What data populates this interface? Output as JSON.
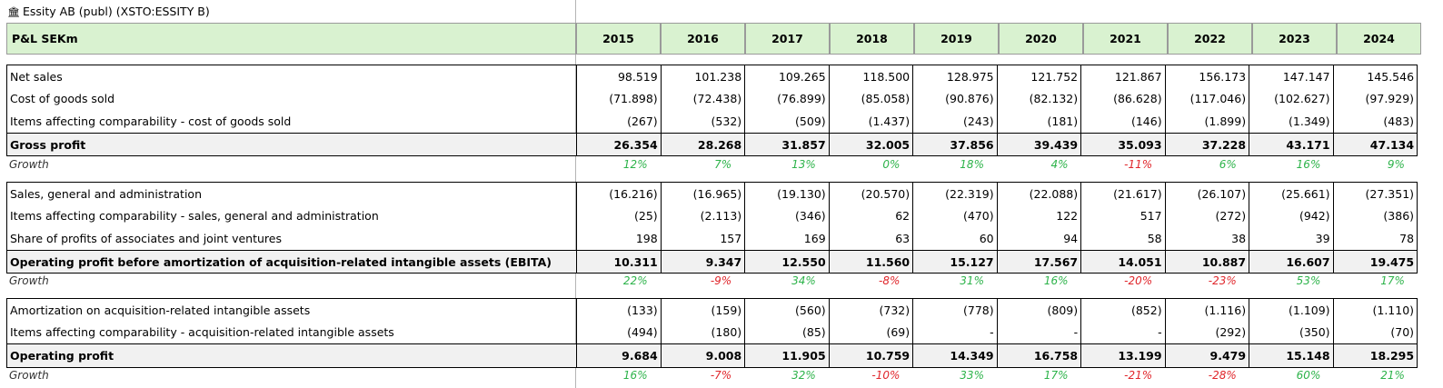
{
  "company": "Essity AB (publ) (XSTO:ESSITY B)",
  "header": {
    "label": "P&L SEKm",
    "years": [
      "2015",
      "2016",
      "2017",
      "2018",
      "2019",
      "2020",
      "2021",
      "2022",
      "2023",
      "2024"
    ]
  },
  "blocks": [
    {
      "rows": [
        {
          "label": "Net sales",
          "values": [
            "98.519",
            "101.238",
            "109.265",
            "118.500",
            "128.975",
            "121.752",
            "121.867",
            "156.173",
            "147.147",
            "145.546"
          ]
        },
        {
          "label": "Cost of goods sold",
          "values": [
            "(71.898)",
            "(72.438)",
            "(76.899)",
            "(85.058)",
            "(90.876)",
            "(82.132)",
            "(86.628)",
            "(117.046)",
            "(102.627)",
            "(97.929)"
          ]
        },
        {
          "label": "Items affecting comparability - cost of goods sold",
          "values": [
            "(267)",
            "(532)",
            "(509)",
            "(1.437)",
            "(243)",
            "(181)",
            "(146)",
            "(1.899)",
            "(1.349)",
            "(483)"
          ]
        }
      ],
      "total": {
        "label": "Gross profit",
        "values": [
          "26.354",
          "28.268",
          "31.857",
          "32.005",
          "37.856",
          "39.439",
          "35.093",
          "37.228",
          "43.171",
          "47.134"
        ]
      },
      "growth": {
        "label": "Growth",
        "values": [
          "12%",
          "7%",
          "13%",
          "0%",
          "18%",
          "4%",
          "-11%",
          "6%",
          "16%",
          "9%"
        ]
      }
    },
    {
      "rows": [
        {
          "label": "Sales, general and administration",
          "values": [
            "(16.216)",
            "(16.965)",
            "(19.130)",
            "(20.570)",
            "(22.319)",
            "(22.088)",
            "(21.617)",
            "(26.107)",
            "(25.661)",
            "(27.351)"
          ]
        },
        {
          "label": "Items affecting comparability - sales, general and administration",
          "values": [
            "(25)",
            "(2.113)",
            "(346)",
            "62",
            "(470)",
            "122",
            "517",
            "(272)",
            "(942)",
            "(386)"
          ]
        },
        {
          "label": "Share of profits of associates and joint ventures",
          "values": [
            "198",
            "157",
            "169",
            "63",
            "60",
            "94",
            "58",
            "38",
            "39",
            "78"
          ]
        }
      ],
      "total": {
        "label": "Operating profit before amortization of acquisition-related intangible assets (EBITA)",
        "values": [
          "10.311",
          "9.347",
          "12.550",
          "11.560",
          "15.127",
          "17.567",
          "14.051",
          "10.887",
          "16.607",
          "19.475"
        ]
      },
      "growth": {
        "label": "Growth",
        "values": [
          "22%",
          "-9%",
          "34%",
          "-8%",
          "31%",
          "16%",
          "-20%",
          "-23%",
          "53%",
          "17%"
        ]
      }
    },
    {
      "rows": [
        {
          "label": "Amortization on acquisition-related intangible assets",
          "values": [
            "(133)",
            "(159)",
            "(560)",
            "(732)",
            "(778)",
            "(809)",
            "(852)",
            "(1.116)",
            "(1.109)",
            "(1.110)"
          ]
        },
        {
          "label": "Items affecting comparability - acquisition-related intangible assets",
          "values": [
            "(494)",
            "(180)",
            "(85)",
            "(69)",
            "-",
            "-",
            "-",
            "(292)",
            "(350)",
            "(70)"
          ]
        }
      ],
      "total": {
        "label": "Operating profit",
        "values": [
          "9.684",
          "9.008",
          "11.905",
          "10.759",
          "14.349",
          "16.758",
          "13.199",
          "9.479",
          "15.148",
          "18.295"
        ]
      },
      "growth": {
        "label": "Growth",
        "values": [
          "16%",
          "-7%",
          "32%",
          "-10%",
          "33%",
          "17%",
          "-21%",
          "-28%",
          "60%",
          "21%"
        ]
      }
    }
  ]
}
